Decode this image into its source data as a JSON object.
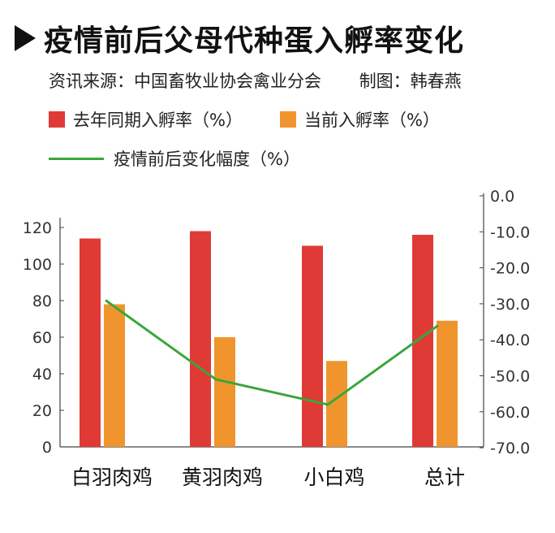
{
  "title": "疫情前后父母代种蛋入孵率变化",
  "source": "资讯来源：中国畜牧业协会禽业分会",
  "author": "制图：韩春燕",
  "colors": {
    "bar_last_year": "#e03a37",
    "bar_current": "#f0952e",
    "line": "#3aa63a",
    "axis": "#444444"
  },
  "chart_data": {
    "type": "bar",
    "categories": [
      "白羽肉鸡",
      "黄羽肉鸡",
      "小白鸡",
      "总计"
    ],
    "series": [
      {
        "name": "去年同期入孵率（%）",
        "type": "bar",
        "axis": "left",
        "values": [
          114,
          118,
          110,
          116
        ]
      },
      {
        "name": "当前入孵率（%）",
        "type": "bar",
        "axis": "left",
        "values": [
          78,
          60,
          47,
          69
        ]
      },
      {
        "name": "疫情前后变化幅度（%）",
        "type": "line",
        "axis": "right",
        "values": [
          -29,
          -51,
          -58,
          -36
        ]
      }
    ],
    "y_left": {
      "lim": [
        0,
        130
      ],
      "ticks": [
        "0",
        "20",
        "40",
        "60",
        "80",
        "100",
        "120"
      ]
    },
    "y_right": {
      "lim": [
        -70,
        0
      ],
      "ticks": [
        "0.0",
        "-10.0",
        "-20.0",
        "-30.0",
        "-40.0",
        "-50.0",
        "-60.0",
        "-70.0"
      ]
    },
    "legend_position": "top-left",
    "grid": false
  }
}
